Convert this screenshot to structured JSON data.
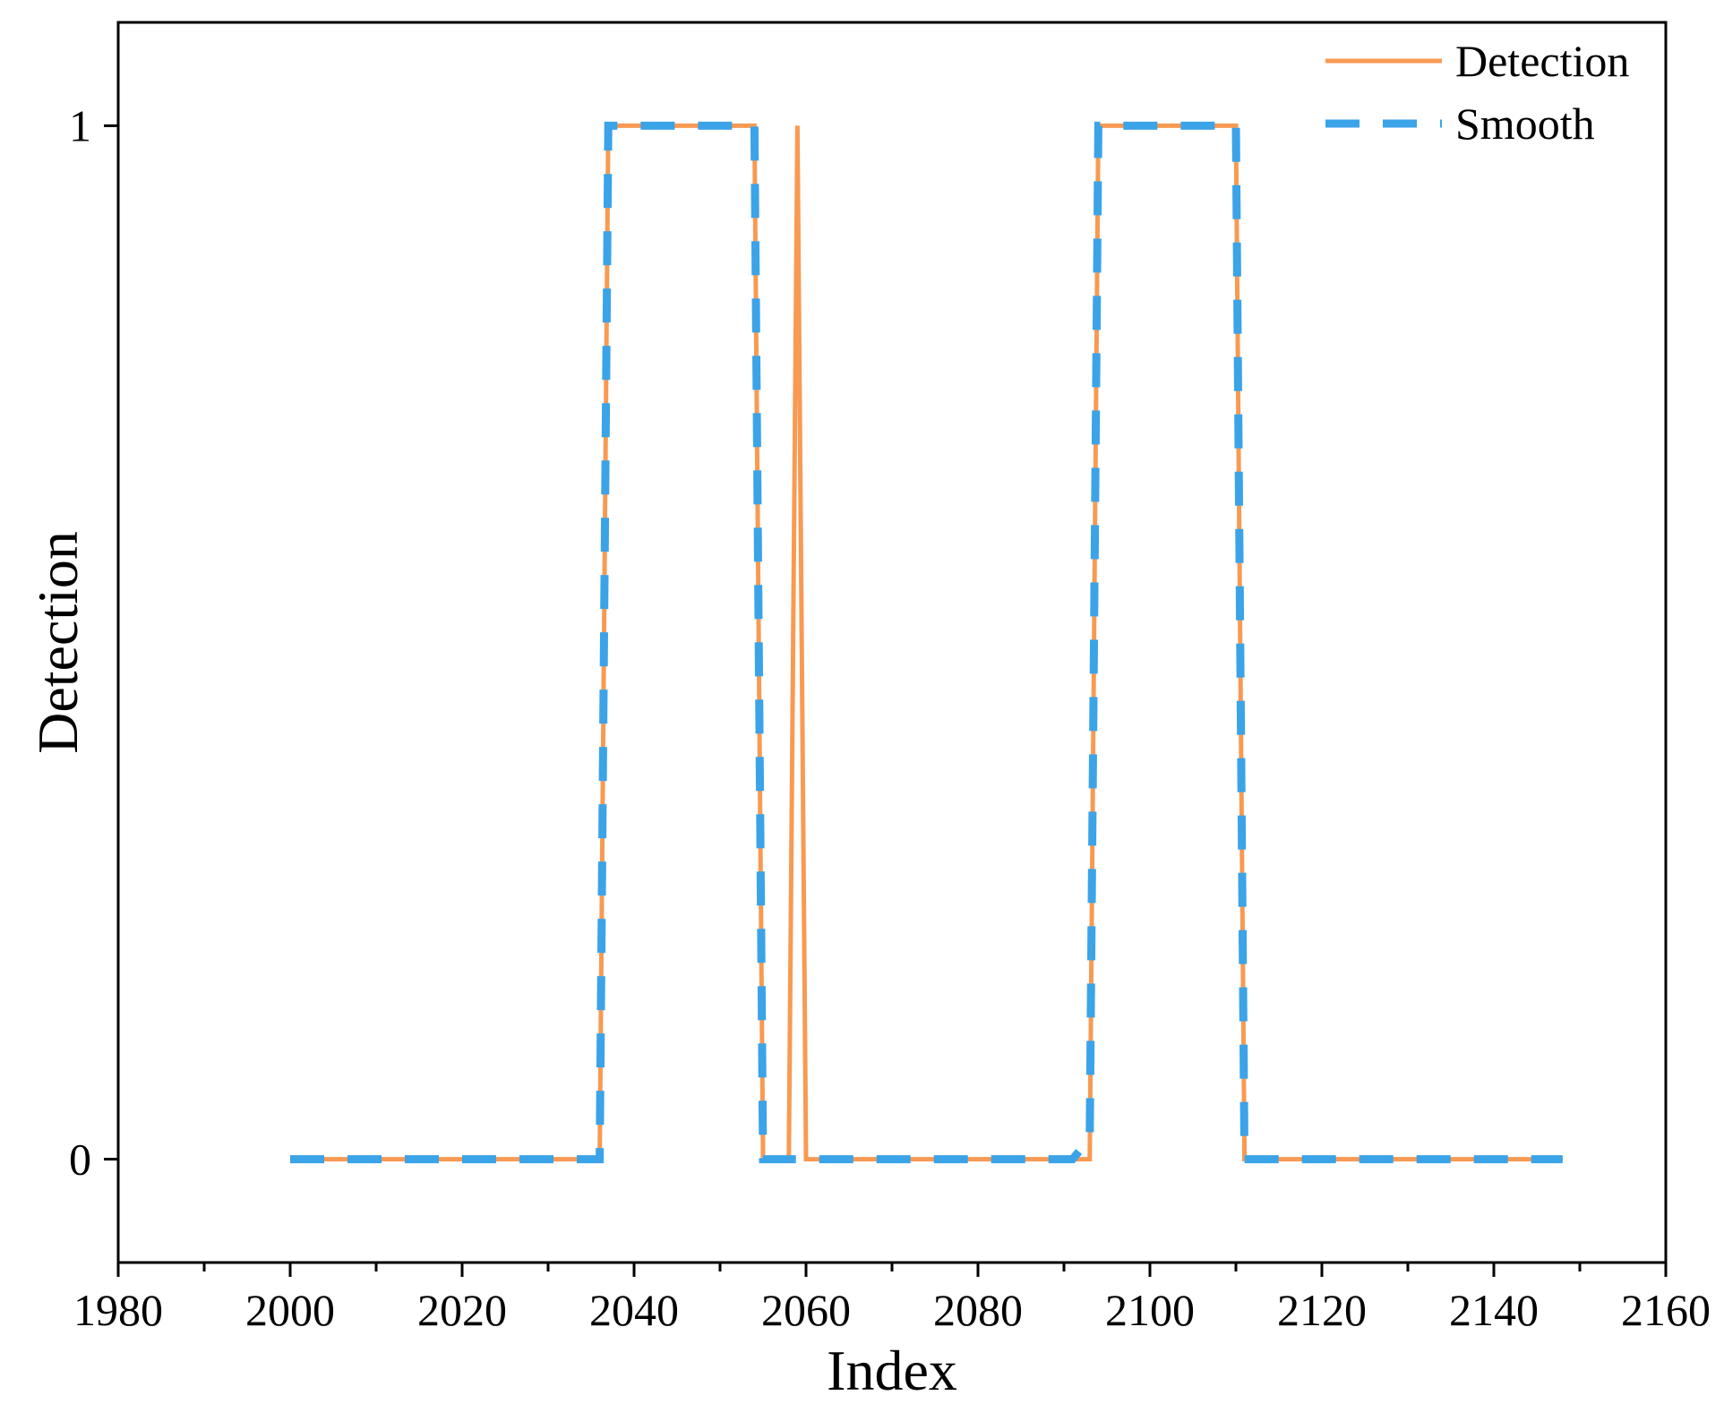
{
  "colors": {
    "detection": "#F89A52",
    "smooth": "#3BA3E8",
    "axis": "#000000",
    "background": "#ffffff"
  },
  "chart_data": {
    "type": "line",
    "title": "",
    "xlabel": "Index",
    "ylabel": "Detection",
    "xlim": [
      1980,
      2160
    ],
    "ylim": [
      -0.1,
      1.1
    ],
    "x_ticks": [
      1980,
      2000,
      2020,
      2040,
      2060,
      2080,
      2100,
      2120,
      2140,
      2160
    ],
    "x_tick_labels": [
      "1980",
      "2000",
      "2020",
      "2040",
      "2060",
      "2080",
      "2100",
      "2120",
      "2140",
      "2160"
    ],
    "x_minor_ticks": [
      1990,
      2010,
      2030,
      2050,
      2070,
      2090,
      2110,
      2130,
      2150
    ],
    "y_ticks": [
      0,
      1
    ],
    "y_tick_labels": [
      "0",
      "1"
    ],
    "grid": false,
    "legend_position": "top-right",
    "series": [
      {
        "name": "Detection",
        "style": "solid",
        "color": "#F89A52",
        "points": [
          [
            2000,
            0
          ],
          [
            2036,
            0
          ],
          [
            2037,
            1
          ],
          [
            2054,
            1
          ],
          [
            2055,
            0
          ],
          [
            2058,
            0
          ],
          [
            2059,
            1
          ],
          [
            2060,
            0
          ],
          [
            2093,
            0
          ],
          [
            2094,
            1
          ],
          [
            2110,
            1
          ],
          [
            2111,
            0
          ],
          [
            2148,
            0
          ]
        ]
      },
      {
        "name": "Smooth",
        "style": "dashed",
        "color": "#3BA3E8",
        "points": [
          [
            2000,
            0
          ],
          [
            2036,
            0
          ],
          [
            2037,
            1
          ],
          [
            2054,
            1
          ],
          [
            2055,
            0
          ],
          [
            2091,
            0
          ],
          [
            2093,
            0.02
          ],
          [
            2094,
            1
          ],
          [
            2110,
            1
          ],
          [
            2111,
            0
          ],
          [
            2148,
            0
          ]
        ]
      }
    ]
  }
}
